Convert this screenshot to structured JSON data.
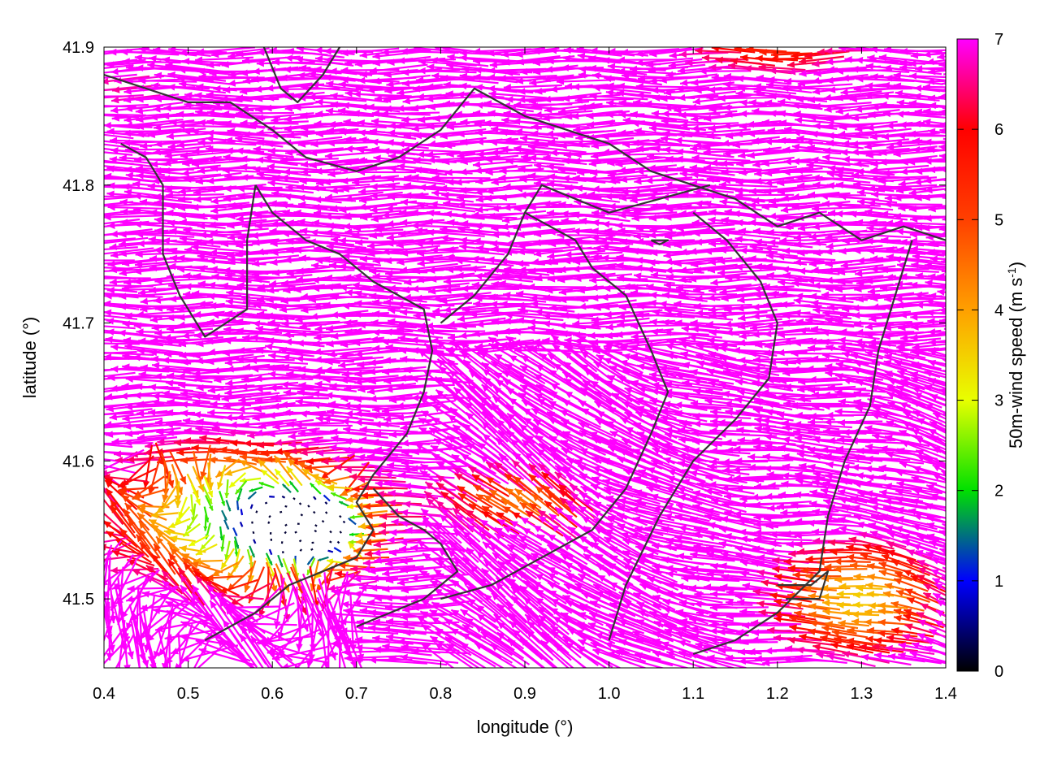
{
  "chart_data": {
    "type": "vector-field",
    "xlabel": "longitude (°)",
    "ylabel": "latitude (°)",
    "colorbar_label": "50m-wind speed (m s",
    "colorbar_label_sup": "-1",
    "colorbar_label_end": ")",
    "xlim": [
      0.4,
      1.4
    ],
    "ylim": [
      41.45,
      41.9
    ],
    "xticks": [
      "0.4",
      "0.5",
      "0.6",
      "0.7",
      "0.8",
      "0.9",
      "1.0",
      "1.1",
      "1.2",
      "1.3",
      "1.4"
    ],
    "yticks": [
      "41.5",
      "41.6",
      "41.7",
      "41.8",
      "41.9"
    ],
    "colorbar_range": [
      0,
      7
    ],
    "colorbar_ticks": [
      "0",
      "1",
      "2",
      "3",
      "4",
      "5",
      "6",
      "7"
    ],
    "colorscale": [
      "#000000",
      "#0000ff",
      "#00e000",
      "#e8ff00",
      "#ffa000",
      "#ff4000",
      "#ff0000",
      "#ff00ff"
    ],
    "wind_direction": "predominantly from east to west (westward arrows)",
    "speed_regions": [
      {
        "region": "north and centre",
        "speed_ms": 7
      },
      {
        "region": "south-west basin",
        "speed_ms": 3
      },
      {
        "region": "near 0.65 lon 41.55 lat",
        "speed_ms": 0.5
      },
      {
        "region": "south-east corner",
        "speed_ms": 3
      }
    ],
    "coastlines": [
      [
        [
          0.4,
          41.88
        ],
        [
          0.45,
          41.87
        ],
        [
          0.5,
          41.86
        ],
        [
          0.55,
          41.86
        ],
        [
          0.6,
          41.84
        ],
        [
          0.64,
          41.82
        ],
        [
          0.7,
          41.81
        ],
        [
          0.75,
          41.82
        ],
        [
          0.8,
          41.84
        ],
        [
          0.84,
          41.87
        ],
        [
          0.9,
          41.85
        ],
        [
          0.95,
          41.84
        ],
        [
          1.0,
          41.83
        ],
        [
          1.05,
          41.81
        ],
        [
          1.1,
          41.8
        ],
        [
          1.15,
          41.79
        ],
        [
          1.2,
          41.77
        ],
        [
          1.25,
          41.78
        ],
        [
          1.3,
          41.76
        ],
        [
          1.35,
          41.77
        ],
        [
          1.4,
          41.76
        ]
      ],
      [
        [
          0.59,
          41.9
        ],
        [
          0.61,
          41.87
        ],
        [
          0.63,
          41.86
        ],
        [
          0.66,
          41.88
        ],
        [
          0.68,
          41.9
        ]
      ],
      [
        [
          0.42,
          41.83
        ],
        [
          0.45,
          41.82
        ],
        [
          0.47,
          41.8
        ],
        [
          0.47,
          41.75
        ],
        [
          0.49,
          41.72
        ],
        [
          0.52,
          41.69
        ],
        [
          0.57,
          41.71
        ],
        [
          0.57,
          41.76
        ],
        [
          0.58,
          41.8
        ]
      ],
      [
        [
          0.58,
          41.8
        ],
        [
          0.6,
          41.78
        ],
        [
          0.64,
          41.76
        ],
        [
          0.68,
          41.75
        ],
        [
          0.72,
          41.73
        ],
        [
          0.75,
          41.72
        ],
        [
          0.78,
          41.71
        ],
        [
          0.79,
          41.68
        ],
        [
          0.78,
          41.65
        ],
        [
          0.76,
          41.62
        ],
        [
          0.72,
          41.59
        ],
        [
          0.7,
          41.57
        ],
        [
          0.72,
          41.55
        ],
        [
          0.7,
          41.53
        ],
        [
          0.66,
          41.52
        ],
        [
          0.62,
          41.51
        ],
        [
          0.58,
          41.49
        ],
        [
          0.52,
          41.47
        ]
      ],
      [
        [
          0.8,
          41.7
        ],
        [
          0.84,
          41.72
        ],
        [
          0.88,
          41.75
        ],
        [
          0.9,
          41.78
        ],
        [
          0.92,
          41.8
        ],
        [
          0.96,
          41.79
        ],
        [
          1.0,
          41.78
        ],
        [
          1.06,
          41.79
        ],
        [
          1.12,
          41.8
        ]
      ],
      [
        [
          0.9,
          41.78
        ],
        [
          0.93,
          41.77
        ],
        [
          0.96,
          41.76
        ],
        [
          0.98,
          41.74
        ],
        [
          1.02,
          41.72
        ],
        [
          1.05,
          41.68
        ],
        [
          1.07,
          41.65
        ],
        [
          1.05,
          41.62
        ],
        [
          1.02,
          41.58
        ],
        [
          0.98,
          41.55
        ],
        [
          0.92,
          41.53
        ],
        [
          0.86,
          41.51
        ],
        [
          0.8,
          41.5
        ]
      ],
      [
        [
          1.1,
          41.78
        ],
        [
          1.14,
          41.76
        ],
        [
          1.18,
          41.73
        ],
        [
          1.2,
          41.7
        ],
        [
          1.19,
          41.66
        ],
        [
          1.15,
          41.63
        ],
        [
          1.1,
          41.6
        ],
        [
          1.06,
          41.56
        ],
        [
          1.02,
          41.51
        ],
        [
          1.0,
          41.47
        ]
      ],
      [
        [
          1.36,
          41.76
        ],
        [
          1.34,
          41.72
        ],
        [
          1.32,
          41.68
        ],
        [
          1.31,
          41.64
        ],
        [
          1.28,
          41.6
        ],
        [
          1.26,
          41.56
        ],
        [
          1.25,
          41.52
        ],
        [
          1.2,
          41.49
        ],
        [
          1.15,
          41.47
        ],
        [
          1.1,
          41.46
        ]
      ],
      [
        [
          0.72,
          41.58
        ],
        [
          0.75,
          41.56
        ],
        [
          0.78,
          41.55
        ],
        [
          0.8,
          41.54
        ],
        [
          0.82,
          41.52
        ],
        [
          0.78,
          41.5
        ],
        [
          0.74,
          41.49
        ],
        [
          0.7,
          41.48
        ]
      ],
      [
        [
          1.05,
          41.76
        ],
        [
          1.07,
          41.76
        ],
        [
          1.06,
          41.757
        ],
        [
          1.05,
          41.76
        ]
      ],
      [
        [
          1.2,
          41.51
        ],
        [
          1.24,
          41.51
        ],
        [
          1.26,
          41.52
        ],
        [
          1.25,
          41.5
        ],
        [
          1.21,
          41.5
        ]
      ]
    ]
  }
}
